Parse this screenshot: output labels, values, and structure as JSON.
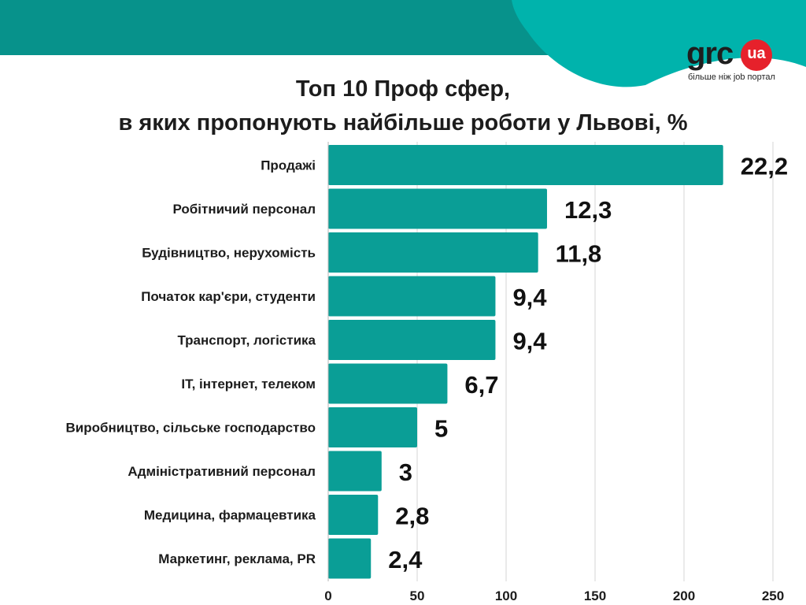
{
  "title": {
    "line1": "Топ 10 Проф сфер,",
    "line2": "в яких пропонують найбільше роботи у Львові, %"
  },
  "logo": {
    "brand": "grc",
    "suffix": "ua",
    "tagline": "більше ніж job портал"
  },
  "colors": {
    "bar": "#0a9e96",
    "header_dark": "#07928b",
    "header_light": "#00b3ac",
    "grid": "#d6d6d6",
    "logo_red": "#e6212b"
  },
  "chart_data": {
    "type": "bar",
    "orientation": "horizontal",
    "categories": [
      "Продажі",
      "Робітничий персонал",
      "Будівництво, нерухомість",
      "Початок кар'єри, студенти",
      "Транспорт, логістика",
      "IT, інтернет, телеком",
      "Виробництво, сільське господарство",
      "Адміністративний персонал",
      "Медицина, фармацевтика",
      "Маркетинг, реклама, PR"
    ],
    "values": [
      22.2,
      12.3,
      11.8,
      9.4,
      9.4,
      6.7,
      5,
      3,
      2.8,
      2.4
    ],
    "value_labels": [
      "22,2",
      "12,3",
      "11,8",
      "9,4",
      "9,4",
      "6,7",
      "5",
      "3",
      "2,8",
      "2,4"
    ],
    "bar_lengths": [
      222,
      123,
      118,
      94,
      94,
      67,
      50,
      30,
      28,
      24
    ],
    "xlim": [
      0,
      250
    ],
    "xticks": [
      0,
      50,
      100,
      150,
      200,
      250
    ],
    "grid": true
  }
}
